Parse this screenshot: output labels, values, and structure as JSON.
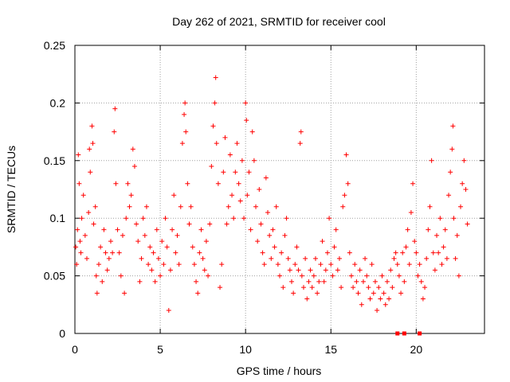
{
  "chart_data": {
    "type": "scatter",
    "title": "Day 262 of 2021, SRMTID for receiver cool",
    "xlabel": "GPS time / hours",
    "ylabel": "SRMTID / TECUs",
    "xlim": [
      0,
      24
    ],
    "ylim": [
      0,
      0.25
    ],
    "xticks": [
      0,
      5,
      10,
      15,
      20
    ],
    "xtick_labels": [
      "0",
      "5",
      "10",
      "15",
      "20"
    ],
    "yticks": [
      0,
      0.05,
      0.1,
      0.15,
      0.2,
      0.25
    ],
    "ytick_labels": [
      "0",
      "0.05",
      "0.1",
      "0.15",
      "0.2",
      "0.25"
    ],
    "grid": true,
    "marker": "+",
    "series": [
      {
        "name": "SRMTID",
        "color": "#ff0000",
        "points": [
          [
            0.05,
            0.075
          ],
          [
            0.1,
            0.06
          ],
          [
            0.15,
            0.09
          ],
          [
            0.2,
            0.155
          ],
          [
            0.25,
            0.13
          ],
          [
            0.3,
            0.08
          ],
          [
            0.35,
            0.07
          ],
          [
            0.4,
            0.1
          ],
          [
            0.5,
            0.12
          ],
          [
            0.6,
            0.085
          ],
          [
            0.7,
            0.065
          ],
          [
            0.8,
            0.105
          ],
          [
            0.85,
            0.16
          ],
          [
            0.9,
            0.14
          ],
          [
            1.0,
            0.18
          ],
          [
            1.05,
            0.165
          ],
          [
            1.1,
            0.095
          ],
          [
            1.2,
            0.11
          ],
          [
            1.25,
            0.05
          ],
          [
            1.3,
            0.035
          ],
          [
            1.4,
            0.06
          ],
          [
            1.5,
            0.075
          ],
          [
            1.6,
            0.045
          ],
          [
            1.7,
            0.09
          ],
          [
            1.8,
            0.07
          ],
          [
            1.9,
            0.055
          ],
          [
            2.0,
            0.065
          ],
          [
            2.1,
            0.08
          ],
          [
            2.2,
            0.07
          ],
          [
            2.3,
            0.175
          ],
          [
            2.35,
            0.195
          ],
          [
            2.4,
            0.13
          ],
          [
            2.5,
            0.09
          ],
          [
            2.6,
            0.07
          ],
          [
            2.7,
            0.05
          ],
          [
            2.8,
            0.085
          ],
          [
            2.9,
            0.035
          ],
          [
            3.0,
            0.1
          ],
          [
            3.1,
            0.13
          ],
          [
            3.2,
            0.11
          ],
          [
            3.3,
            0.12
          ],
          [
            3.4,
            0.16
          ],
          [
            3.5,
            0.145
          ],
          [
            3.6,
            0.095
          ],
          [
            3.7,
            0.08
          ],
          [
            3.8,
            0.045
          ],
          [
            3.9,
            0.065
          ],
          [
            4.0,
            0.1
          ],
          [
            4.1,
            0.085
          ],
          [
            4.2,
            0.11
          ],
          [
            4.3,
            0.06
          ],
          [
            4.4,
            0.075
          ],
          [
            4.5,
            0.055
          ],
          [
            4.6,
            0.07
          ],
          [
            4.7,
            0.045
          ],
          [
            4.8,
            0.09
          ],
          [
            4.9,
            0.065
          ],
          [
            5.0,
            0.05
          ],
          [
            5.1,
            0.08
          ],
          [
            5.2,
            0.06
          ],
          [
            5.3,
            0.1
          ],
          [
            5.4,
            0.075
          ],
          [
            5.5,
            0.02
          ],
          [
            5.6,
            0.055
          ],
          [
            5.7,
            0.09
          ],
          [
            5.8,
            0.12
          ],
          [
            5.9,
            0.07
          ],
          [
            6.0,
            0.085
          ],
          [
            6.1,
            0.06
          ],
          [
            6.2,
            0.11
          ],
          [
            6.3,
            0.165
          ],
          [
            6.4,
            0.19
          ],
          [
            6.45,
            0.2
          ],
          [
            6.5,
            0.175
          ],
          [
            6.6,
            0.13
          ],
          [
            6.7,
            0.095
          ],
          [
            6.8,
            0.11
          ],
          [
            6.9,
            0.075
          ],
          [
            7.0,
            0.06
          ],
          [
            7.1,
            0.045
          ],
          [
            7.2,
            0.035
          ],
          [
            7.3,
            0.07
          ],
          [
            7.4,
            0.09
          ],
          [
            7.5,
            0.065
          ],
          [
            7.6,
            0.055
          ],
          [
            7.7,
            0.08
          ],
          [
            7.8,
            0.05
          ],
          [
            7.9,
            0.095
          ],
          [
            8.0,
            0.145
          ],
          [
            8.1,
            0.18
          ],
          [
            8.2,
            0.2
          ],
          [
            8.25,
            0.222
          ],
          [
            8.3,
            0.165
          ],
          [
            8.4,
            0.13
          ],
          [
            8.5,
            0.04
          ],
          [
            8.6,
            0.06
          ],
          [
            8.7,
            0.14
          ],
          [
            8.8,
            0.17
          ],
          [
            8.9,
            0.095
          ],
          [
            9.0,
            0.11
          ],
          [
            9.1,
            0.155
          ],
          [
            9.2,
            0.12
          ],
          [
            9.3,
            0.1
          ],
          [
            9.4,
            0.14
          ],
          [
            9.5,
            0.165
          ],
          [
            9.6,
            0.13
          ],
          [
            9.7,
            0.115
          ],
          [
            9.8,
            0.15
          ],
          [
            9.9,
            0.1
          ],
          [
            10.0,
            0.2
          ],
          [
            10.05,
            0.185
          ],
          [
            10.1,
            0.12
          ],
          [
            10.2,
            0.14
          ],
          [
            10.3,
            0.09
          ],
          [
            10.4,
            0.175
          ],
          [
            10.5,
            0.15
          ],
          [
            10.6,
            0.11
          ],
          [
            10.7,
            0.08
          ],
          [
            10.8,
            0.125
          ],
          [
            10.9,
            0.095
          ],
          [
            11.0,
            0.07
          ],
          [
            11.1,
            0.06
          ],
          [
            11.2,
            0.135
          ],
          [
            11.3,
            0.105
          ],
          [
            11.4,
            0.085
          ],
          [
            11.5,
            0.065
          ],
          [
            11.6,
            0.09
          ],
          [
            11.7,
            0.075
          ],
          [
            11.8,
            0.11
          ],
          [
            11.9,
            0.06
          ],
          [
            12.0,
            0.05
          ],
          [
            12.1,
            0.07
          ],
          [
            12.2,
            0.04
          ],
          [
            12.3,
            0.085
          ],
          [
            12.4,
            0.1
          ],
          [
            12.5,
            0.065
          ],
          [
            12.6,
            0.055
          ],
          [
            12.7,
            0.045
          ],
          [
            12.8,
            0.035
          ],
          [
            12.9,
            0.06
          ],
          [
            13.0,
            0.075
          ],
          [
            13.1,
            0.055
          ],
          [
            13.2,
            0.165
          ],
          [
            13.25,
            0.175
          ],
          [
            13.3,
            0.05
          ],
          [
            13.4,
            0.04
          ],
          [
            13.5,
            0.065
          ],
          [
            13.6,
            0.03
          ],
          [
            13.7,
            0.045
          ],
          [
            13.8,
            0.055
          ],
          [
            13.9,
            0.04
          ],
          [
            14.0,
            0.05
          ],
          [
            14.1,
            0.065
          ],
          [
            14.2,
            0.035
          ],
          [
            14.3,
            0.045
          ],
          [
            14.4,
            0.06
          ],
          [
            14.5,
            0.08
          ],
          [
            14.6,
            0.045
          ],
          [
            14.7,
            0.055
          ],
          [
            14.8,
            0.07
          ],
          [
            14.9,
            0.1
          ],
          [
            15.0,
            0.06
          ],
          [
            15.1,
            0.05
          ],
          [
            15.2,
            0.075
          ],
          [
            15.3,
            0.09
          ],
          [
            15.4,
            0.055
          ],
          [
            15.5,
            0.065
          ],
          [
            15.6,
            0.04
          ],
          [
            15.7,
            0.11
          ],
          [
            15.8,
            0.12
          ],
          [
            15.9,
            0.155
          ],
          [
            16.0,
            0.13
          ],
          [
            16.1,
            0.07
          ],
          [
            16.2,
            0.05
          ],
          [
            16.3,
            0.04
          ],
          [
            16.4,
            0.06
          ],
          [
            16.5,
            0.045
          ],
          [
            16.6,
            0.035
          ],
          [
            16.7,
            0.055
          ],
          [
            16.8,
            0.025
          ],
          [
            16.9,
            0.045
          ],
          [
            17.0,
            0.065
          ],
          [
            17.1,
            0.05
          ],
          [
            17.2,
            0.04
          ],
          [
            17.3,
            0.03
          ],
          [
            17.4,
            0.06
          ],
          [
            17.5,
            0.035
          ],
          [
            17.6,
            0.045
          ],
          [
            17.7,
            0.02
          ],
          [
            17.8,
            0.04
          ],
          [
            17.9,
            0.03
          ],
          [
            18.0,
            0.05
          ],
          [
            18.1,
            0.035
          ],
          [
            18.2,
            0.025
          ],
          [
            18.3,
            0.045
          ],
          [
            18.4,
            0.03
          ],
          [
            18.5,
            0.055
          ],
          [
            18.6,
            0.04
          ],
          [
            18.7,
            0.065
          ],
          [
            18.8,
            0.07
          ],
          [
            18.9,
            0.06
          ],
          [
            19.0,
            0.05
          ],
          [
            19.1,
            0.035
          ],
          [
            19.2,
            0.07
          ],
          [
            19.3,
            0.045
          ],
          [
            19.4,
            0.075
          ],
          [
            19.5,
            0.09
          ],
          [
            19.6,
            0.06
          ],
          [
            19.7,
            0.105
          ],
          [
            19.8,
            0.13
          ],
          [
            19.9,
            0.08
          ],
          [
            20.0,
            0.07
          ],
          [
            20.1,
            0.05
          ],
          [
            20.2,
            0.06
          ],
          [
            20.3,
            0.045
          ],
          [
            20.4,
            0.03
          ],
          [
            20.5,
            0.04
          ],
          [
            20.6,
            0.065
          ],
          [
            20.7,
            0.09
          ],
          [
            20.8,
            0.11
          ],
          [
            20.9,
            0.15
          ],
          [
            21.0,
            0.07
          ],
          [
            21.1,
            0.055
          ],
          [
            21.2,
            0.085
          ],
          [
            21.3,
            0.07
          ],
          [
            21.4,
            0.1
          ],
          [
            21.5,
            0.06
          ],
          [
            21.6,
            0.075
          ],
          [
            21.7,
            0.09
          ],
          [
            21.8,
            0.065
          ],
          [
            21.9,
            0.12
          ],
          [
            22.0,
            0.14
          ],
          [
            22.1,
            0.16
          ],
          [
            22.15,
            0.18
          ],
          [
            22.2,
            0.1
          ],
          [
            22.3,
            0.065
          ],
          [
            22.4,
            0.085
          ],
          [
            22.5,
            0.05
          ],
          [
            22.6,
            0.11
          ],
          [
            22.7,
            0.13
          ],
          [
            22.8,
            0.15
          ],
          [
            22.9,
            0.125
          ],
          [
            23.0,
            0.095
          ]
        ]
      }
    ],
    "zero_markers": [
      18.9,
      19.3,
      20.2
    ]
  }
}
